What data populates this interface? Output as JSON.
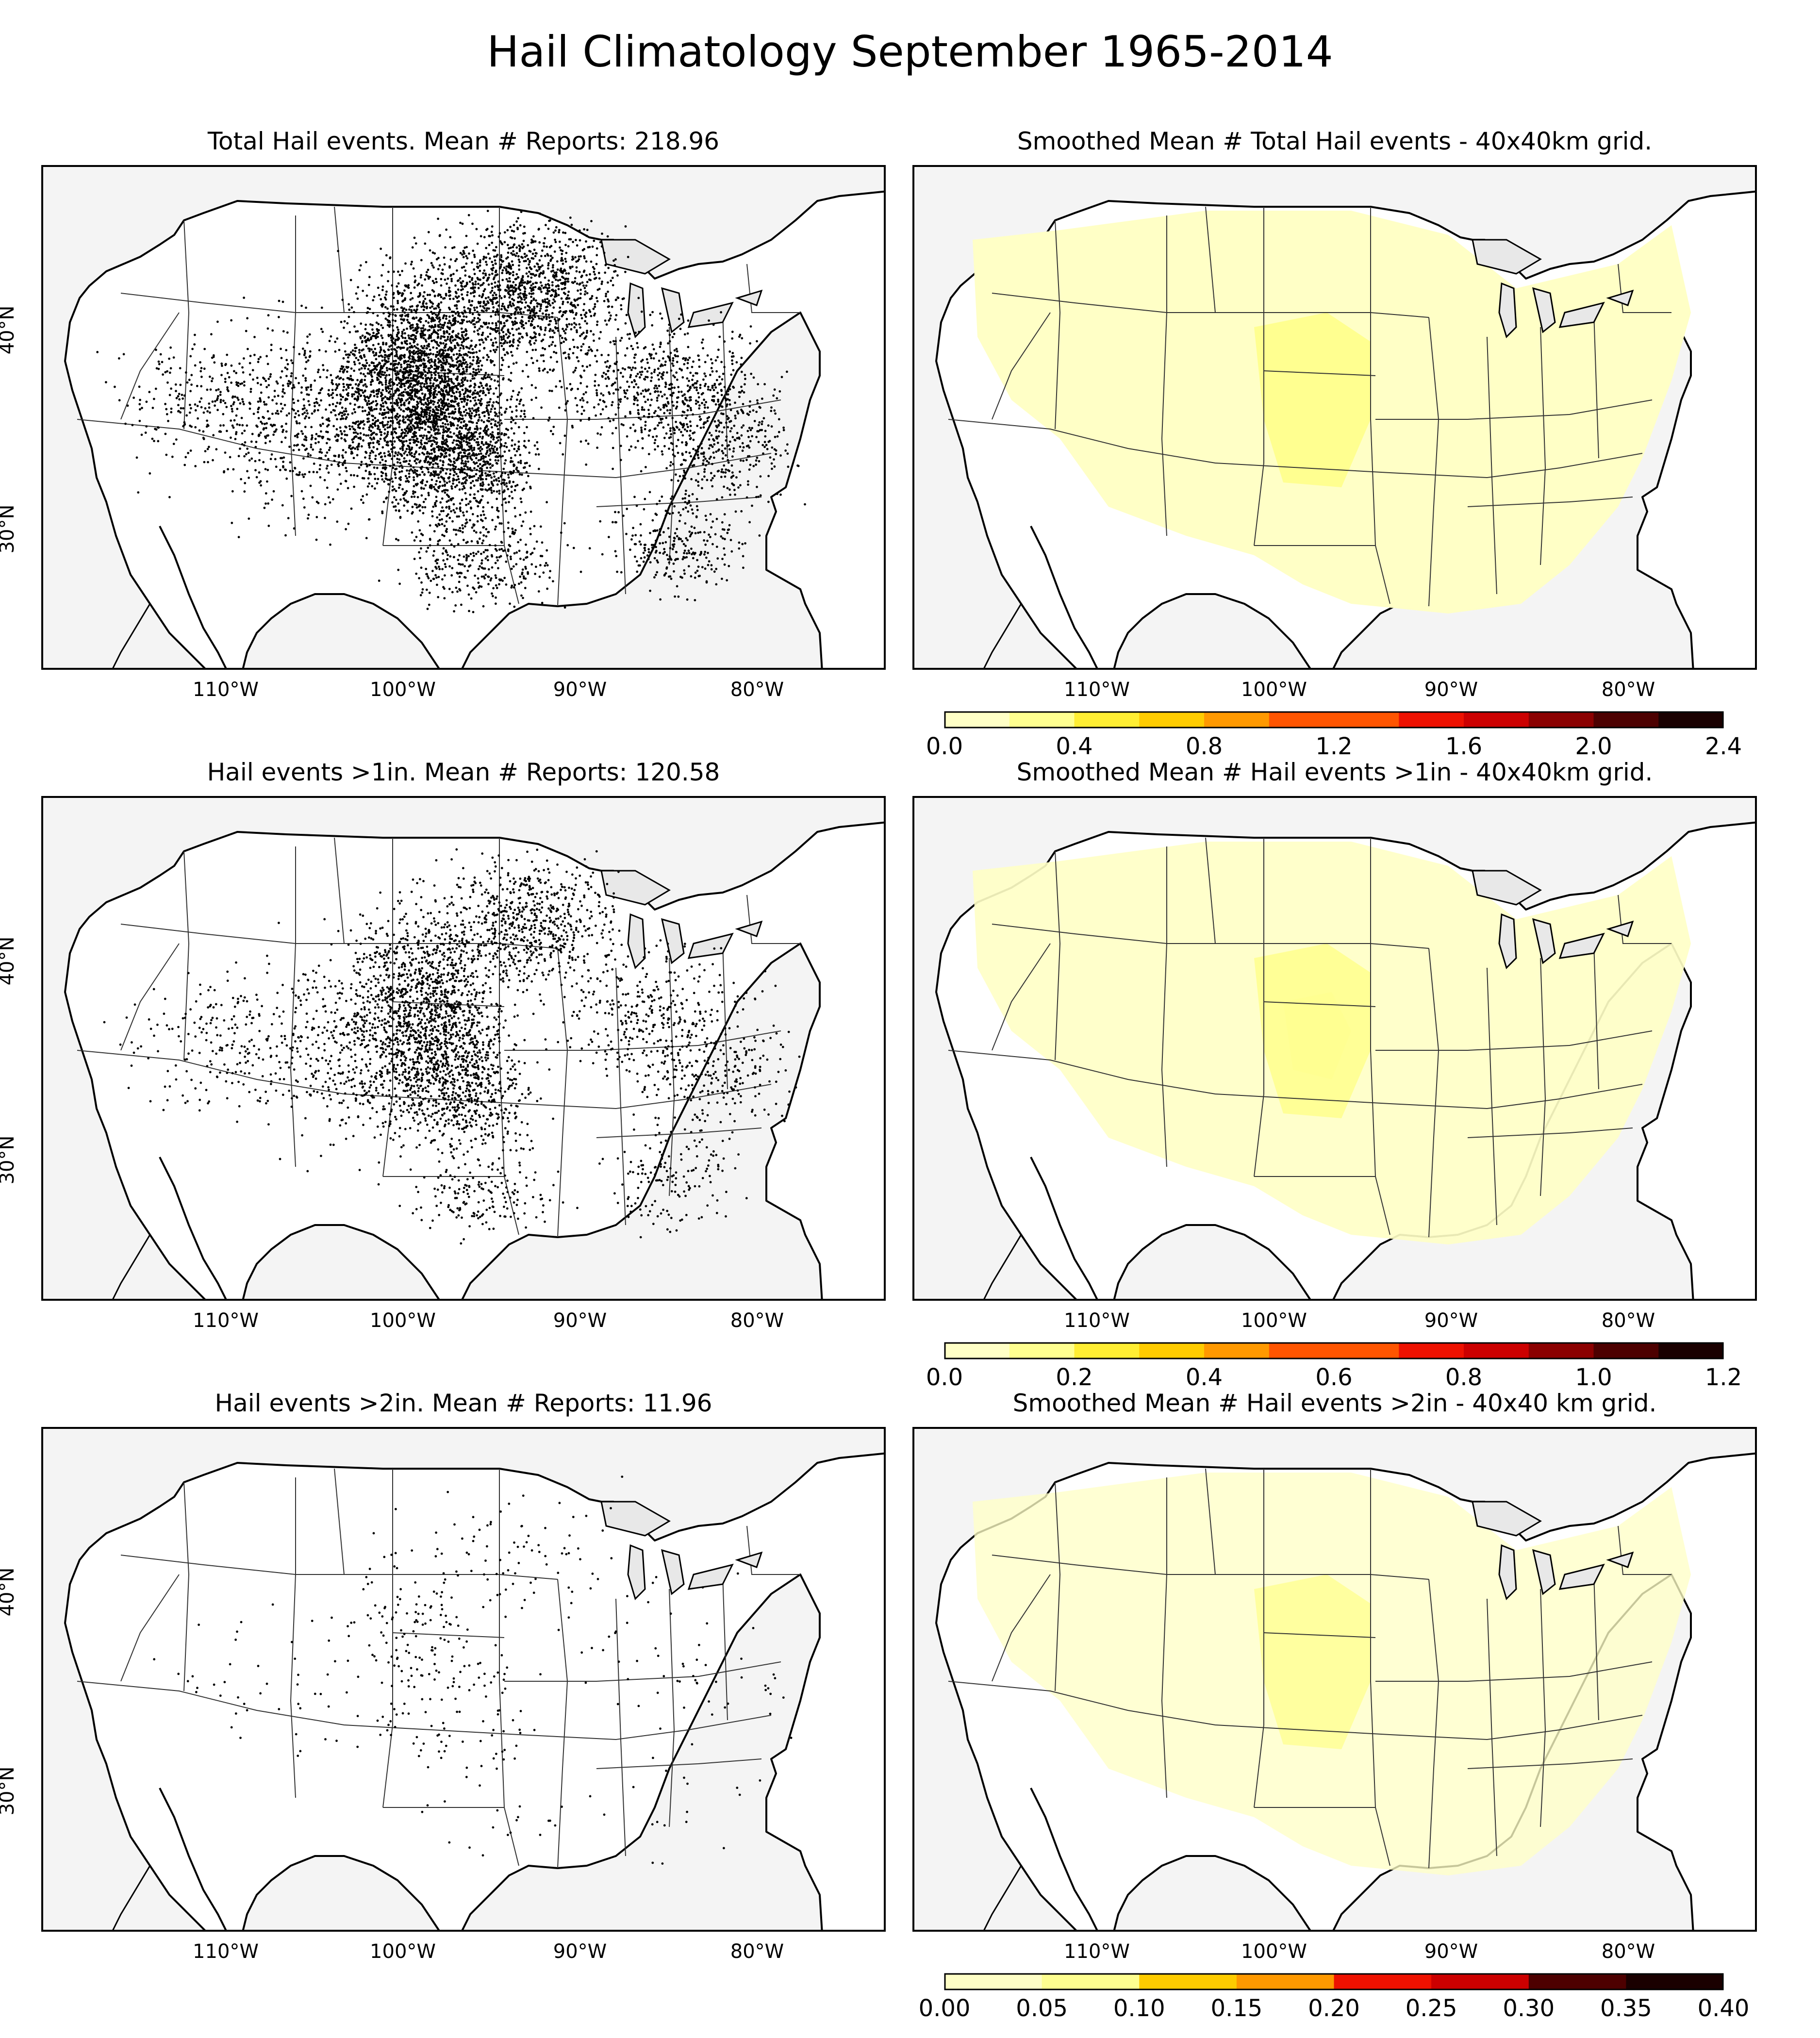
{
  "suptitle": "Hail Climatology September 1965-2014",
  "colors": {
    "land": "#ffffff",
    "ocean": "#f4f4f4",
    "lake": "#e8e8e8",
    "border": "#000000",
    "dots": "#000000"
  },
  "colormap": [
    "#ffffc6",
    "#ffff90",
    "#ffee33",
    "#ffcc00",
    "#ff9900",
    "#ff5500",
    "#ee1100",
    "#cc0000",
    "#8b0000",
    "#4d0000",
    "#1a0000"
  ],
  "chart_data": [
    {
      "type": "scatter",
      "title": "Total Hail events. Mean # Reports: 218.96",
      "xticks": [
        "110°W",
        "100°W",
        "90°W",
        "80°W"
      ],
      "yticks": [
        "40°N",
        "30°N"
      ],
      "density": 1.0
    },
    {
      "type": "heatmap",
      "title": "Smoothed Mean # Total Hail events - 40x40km grid.",
      "xticks": [
        "110°W",
        "100°W",
        "90°W",
        "80°W"
      ],
      "colorbar": {
        "ticks": [
          "0.0",
          "0.4",
          "0.8",
          "1.2",
          "1.6",
          "2.0",
          "2.4"
        ],
        "range": [
          0,
          2.4
        ],
        "levels": 12
      }
    },
    {
      "type": "scatter",
      "title": "Hail events >1in. Mean # Reports: 120.58",
      "xticks": [
        "110°W",
        "100°W",
        "90°W",
        "80°W"
      ],
      "yticks": [
        "40°N",
        "30°N"
      ],
      "density": 0.55
    },
    {
      "type": "heatmap",
      "title": "Smoothed Mean # Hail events >1in - 40x40km grid.",
      "xticks": [
        "110°W",
        "100°W",
        "90°W",
        "80°W"
      ],
      "colorbar": {
        "ticks": [
          "0.0",
          "0.2",
          "0.4",
          "0.6",
          "0.8",
          "1.0",
          "1.2"
        ],
        "range": [
          0,
          1.2
        ],
        "levels": 12
      }
    },
    {
      "type": "scatter",
      "title": "Hail events >2in. Mean # Reports: 11.96",
      "xticks": [
        "110°W",
        "100°W",
        "90°W",
        "80°W"
      ],
      "yticks": [
        "40°N",
        "30°N"
      ],
      "density": 0.06
    },
    {
      "type": "heatmap",
      "title": "Smoothed Mean # Hail events >2in - 40x40 km grid.",
      "xticks": [
        "110°W",
        "100°W",
        "90°W",
        "80°W"
      ],
      "colorbar": {
        "ticks": [
          "0.00",
          "0.05",
          "0.10",
          "0.15",
          "0.20",
          "0.25",
          "0.30",
          "0.35",
          "0.40"
        ],
        "range": [
          0,
          0.4
        ],
        "levels": 8
      }
    }
  ]
}
